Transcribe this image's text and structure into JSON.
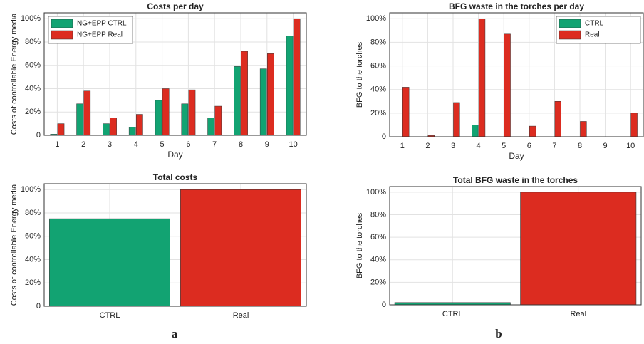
{
  "panel_labels": [
    "a",
    "b"
  ],
  "chart_data": [
    {
      "type": "bar",
      "title": "Costs per day",
      "xlabel": "Day",
      "ylabel": "Costs of controllable Energy media",
      "categories": [
        "1",
        "2",
        "3",
        "4",
        "5",
        "6",
        "7",
        "8",
        "9",
        "10"
      ],
      "series": [
        {
          "name": "NG+EPP CTRL",
          "color": "#12a372",
          "values": [
            1,
            27,
            10,
            7,
            30,
            27,
            15,
            59,
            57,
            85
          ]
        },
        {
          "name": "NG+EPP Real",
          "color": "#dc2c20",
          "values": [
            10,
            38,
            15,
            18,
            40,
            39,
            25,
            72,
            70,
            100
          ]
        }
      ],
      "ylim": [
        0,
        105
      ],
      "yticks": [
        0,
        {
          "value": 20,
          "label": "20%"
        },
        {
          "value": 40,
          "label": "40%"
        },
        {
          "value": 60,
          "label": "60%"
        },
        {
          "value": 80,
          "label": "80%"
        },
        {
          "value": 100,
          "label": "100%"
        }
      ],
      "grid": true,
      "legend": "upper left"
    },
    {
      "type": "bar",
      "title": "BFG waste in the torches per day",
      "xlabel": "Day",
      "ylabel": "BFG to the torches",
      "categories": [
        "1",
        "2",
        "3",
        "4",
        "5",
        "6",
        "7",
        "8",
        "9",
        "10"
      ],
      "series": [
        {
          "name": "CTRL",
          "color": "#12a372",
          "values": [
            0,
            0,
            0,
            10,
            0,
            0,
            0,
            0,
            0,
            0
          ]
        },
        {
          "name": "Real",
          "color": "#dc2c20",
          "values": [
            42,
            1,
            29,
            100,
            87,
            9,
            30,
            13,
            0,
            20
          ]
        }
      ],
      "ylim": [
        0,
        105
      ],
      "yticks": [
        0,
        {
          "value": 20,
          "label": "20%"
        },
        {
          "value": 40,
          "label": "40%"
        },
        {
          "value": 60,
          "label": "60%"
        },
        {
          "value": 80,
          "label": "80%"
        },
        {
          "value": 100,
          "label": "100%"
        }
      ],
      "grid": true,
      "legend": "upper right"
    },
    {
      "type": "bar",
      "title": "Total costs",
      "ylabel": "Costs of controllable Energy media",
      "categories": [
        "CTRL",
        "Real"
      ],
      "values": [
        75,
        100
      ],
      "colors": [
        "#12a372",
        "#dc2c20"
      ],
      "ylim": [
        0,
        105
      ],
      "yticks": [
        0,
        {
          "value": 20,
          "label": "20%"
        },
        {
          "value": 40,
          "label": "40%"
        },
        {
          "value": 60,
          "label": "60%"
        },
        {
          "value": 80,
          "label": "80%"
        },
        {
          "value": 100,
          "label": "100%"
        }
      ],
      "grid": true
    },
    {
      "type": "bar",
      "title": "Total BFG waste in the torches",
      "ylabel": "BFG to the torches",
      "categories": [
        "CTRL",
        "Real"
      ],
      "values": [
        2,
        100
      ],
      "colors": [
        "#12a372",
        "#dc2c20"
      ],
      "ylim": [
        0,
        105
      ],
      "yticks": [
        0,
        {
          "value": 20,
          "label": "20%"
        },
        {
          "value": 40,
          "label": "40%"
        },
        {
          "value": 60,
          "label": "60%"
        },
        {
          "value": 80,
          "label": "80%"
        },
        {
          "value": 100,
          "label": "100%"
        }
      ],
      "grid": true
    }
  ]
}
